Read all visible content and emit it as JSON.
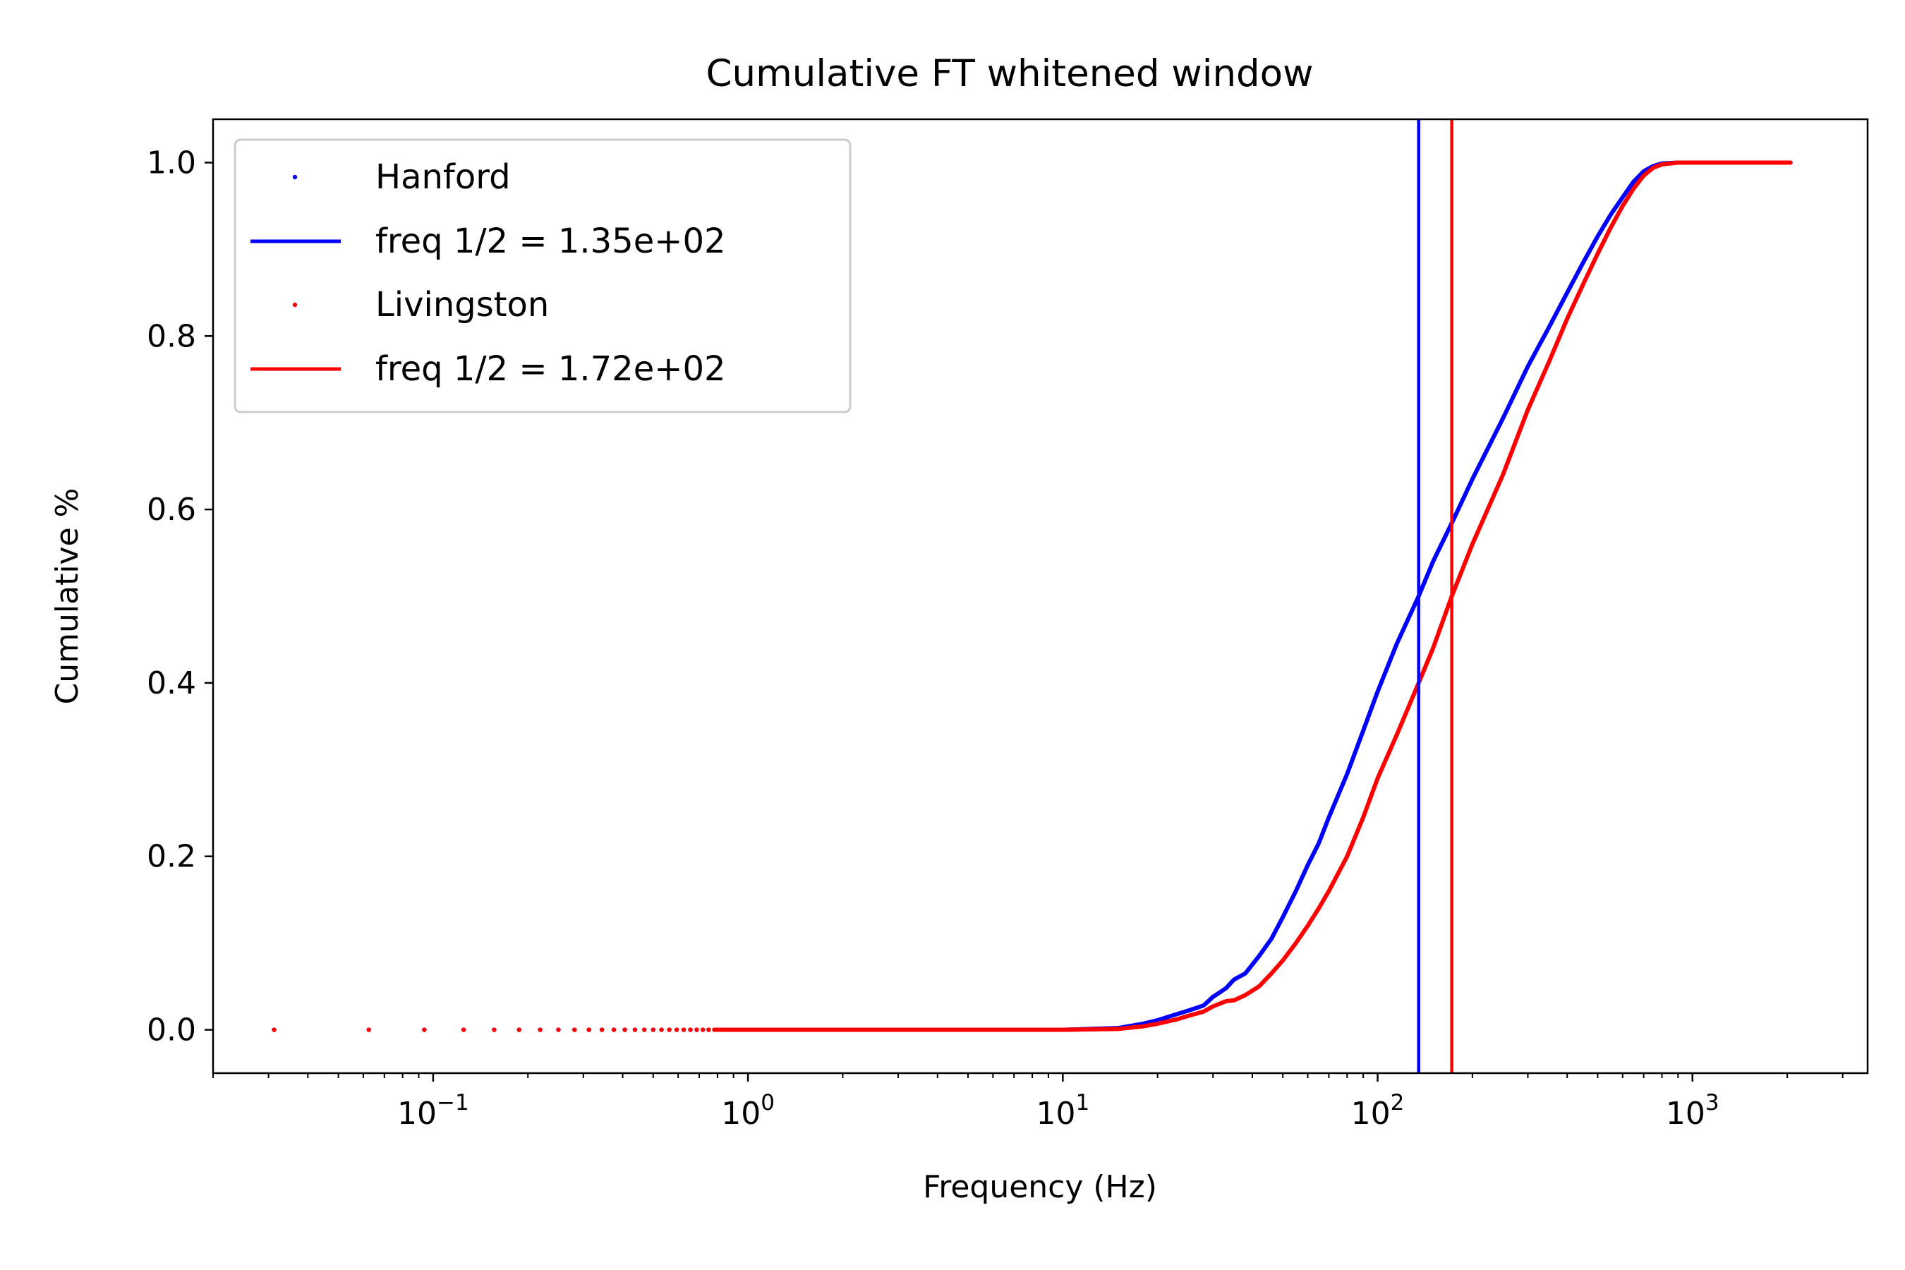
{
  "chart_data": {
    "type": "line",
    "title": "Cumulative FT whitened window",
    "xlabel": "Frequency (Hz)",
    "ylabel": "Cumulative %",
    "xscale": "log",
    "xlim": [
      0.02,
      3600
    ],
    "ylim": [
      -0.05,
      1.05
    ],
    "x_ticks": [
      {
        "value": 0.1,
        "base": "10",
        "exp": "−1"
      },
      {
        "value": 1,
        "base": "10",
        "exp": "0"
      },
      {
        "value": 10,
        "base": "10",
        "exp": "1"
      },
      {
        "value": 100,
        "base": "10",
        "exp": "2"
      },
      {
        "value": 1000,
        "base": "10",
        "exp": "3"
      }
    ],
    "y_ticks": [
      {
        "value": 0.0,
        "label": "0.0"
      },
      {
        "value": 0.2,
        "label": "0.2"
      },
      {
        "value": 0.4,
        "label": "0.4"
      },
      {
        "value": 0.6,
        "label": "0.6"
      },
      {
        "value": 0.8,
        "label": "0.8"
      },
      {
        "value": 1.0,
        "label": "1.0"
      }
    ],
    "grid": false,
    "legend_position": "upper-left",
    "series": [
      {
        "name": "Hanford",
        "style": "points",
        "color": "#0000ff",
        "x_range": [
          0.03125,
          2048
        ],
        "x_step": 0.03125,
        "x": [
          0.03125,
          10,
          15,
          18,
          20,
          23,
          25,
          28,
          30,
          33,
          35,
          38,
          42,
          46,
          50,
          55,
          60,
          65,
          70,
          80,
          90,
          100,
          115,
          135,
          150,
          175,
          200,
          250,
          300,
          350,
          400,
          450,
          500,
          550,
          600,
          650,
          700,
          750,
          800,
          900,
          1000,
          1200,
          2048
        ],
        "y": [
          0.0,
          0.0,
          0.002,
          0.007,
          0.011,
          0.018,
          0.022,
          0.028,
          0.038,
          0.048,
          0.058,
          0.065,
          0.085,
          0.105,
          0.13,
          0.16,
          0.19,
          0.215,
          0.245,
          0.295,
          0.345,
          0.39,
          0.445,
          0.5,
          0.54,
          0.59,
          0.635,
          0.705,
          0.765,
          0.81,
          0.85,
          0.885,
          0.915,
          0.94,
          0.96,
          0.978,
          0.99,
          0.996,
          0.999,
          1.0,
          1.0,
          1.0,
          1.0
        ]
      },
      {
        "name": "freq 1/2 = 1.35e+02",
        "style": "vline",
        "color": "#0000ff",
        "x_value": 135
      },
      {
        "name": "Livingston",
        "style": "points",
        "color": "#ff0000",
        "x_range": [
          0.03125,
          2048
        ],
        "x_step": 0.03125,
        "x": [
          0.03125,
          10,
          15,
          18,
          20,
          23,
          25,
          28,
          30,
          33,
          35,
          38,
          42,
          46,
          50,
          55,
          60,
          65,
          70,
          80,
          90,
          100,
          115,
          135,
          150,
          172,
          200,
          250,
          300,
          350,
          400,
          450,
          500,
          550,
          600,
          650,
          700,
          750,
          800,
          900,
          1000,
          1200,
          2048
        ],
        "y": [
          0.0,
          0.0,
          0.001,
          0.004,
          0.007,
          0.012,
          0.016,
          0.021,
          0.027,
          0.033,
          0.034,
          0.04,
          0.05,
          0.065,
          0.08,
          0.1,
          0.12,
          0.14,
          0.16,
          0.2,
          0.245,
          0.29,
          0.34,
          0.4,
          0.44,
          0.5,
          0.56,
          0.64,
          0.715,
          0.77,
          0.82,
          0.86,
          0.895,
          0.925,
          0.95,
          0.97,
          0.985,
          0.994,
          0.998,
          1.0,
          1.0,
          1.0,
          1.0
        ]
      },
      {
        "name": "freq 1/2 = 1.72e+02",
        "style": "vline",
        "color": "#ff0000",
        "x_value": 172
      }
    ]
  }
}
